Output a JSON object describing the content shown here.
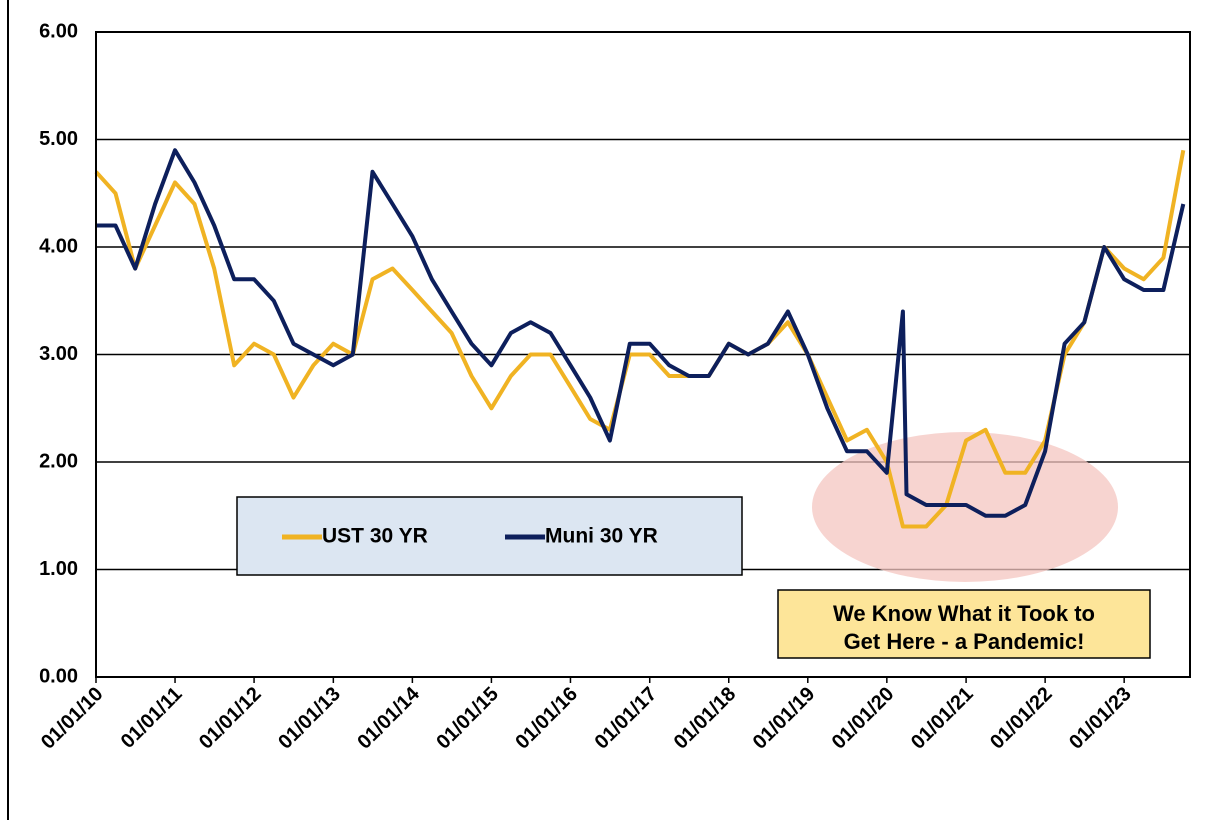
{
  "chart_data": {
    "type": "line",
    "x": [
      "01/01/10",
      "04/01/10",
      "07/01/10",
      "10/01/10",
      "01/01/11",
      "04/01/11",
      "07/01/11",
      "10/01/11",
      "01/01/12",
      "04/01/12",
      "07/01/12",
      "10/01/12",
      "01/01/13",
      "04/01/13",
      "07/01/13",
      "10/01/13",
      "01/01/14",
      "04/01/14",
      "07/01/14",
      "10/01/14",
      "01/01/15",
      "04/01/15",
      "07/01/15",
      "10/01/15",
      "01/01/16",
      "04/01/16",
      "07/01/16",
      "10/01/16",
      "01/01/17",
      "04/01/17",
      "07/01/17",
      "10/01/17",
      "01/01/18",
      "04/01/18",
      "07/01/18",
      "10/01/18",
      "01/01/19",
      "04/01/19",
      "07/01/19",
      "10/01/19",
      "01/01/20",
      "03/15/20",
      "04/01/20",
      "07/01/20",
      "10/01/20",
      "01/01/21",
      "04/01/21",
      "07/01/21",
      "10/01/21",
      "01/01/22",
      "04/01/22",
      "07/01/22",
      "10/01/22",
      "01/01/23",
      "04/01/23",
      "07/01/23",
      "10/01/23"
    ],
    "series": [
      {
        "name": "UST 30 YR",
        "color": "#f0b323",
        "values": [
          4.7,
          4.5,
          3.8,
          4.2,
          4.6,
          4.4,
          3.8,
          2.9,
          3.1,
          3.0,
          2.6,
          2.9,
          3.1,
          3.0,
          3.7,
          3.8,
          3.6,
          3.4,
          3.2,
          2.8,
          2.5,
          2.8,
          3.0,
          3.0,
          2.7,
          2.4,
          2.3,
          3.0,
          3.0,
          2.8,
          2.8,
          2.8,
          3.1,
          3.0,
          3.1,
          3.3,
          3.0,
          2.6,
          2.2,
          2.3,
          2.0,
          1.4,
          1.4,
          1.4,
          1.6,
          2.2,
          2.3,
          1.9,
          1.9,
          2.2,
          3.0,
          3.3,
          4.0,
          3.8,
          3.7,
          3.9,
          4.9
        ]
      },
      {
        "name": "Muni 30 YR",
        "color": "#0d1f5c",
        "values": [
          4.2,
          4.2,
          3.8,
          4.4,
          4.9,
          4.6,
          4.2,
          3.7,
          3.7,
          3.5,
          3.1,
          3.0,
          2.9,
          3.0,
          4.7,
          4.4,
          4.1,
          3.7,
          3.4,
          3.1,
          2.9,
          3.2,
          3.3,
          3.2,
          2.9,
          2.6,
          2.2,
          3.1,
          3.1,
          2.9,
          2.8,
          2.8,
          3.1,
          3.0,
          3.1,
          3.4,
          3.0,
          2.5,
          2.1,
          2.1,
          1.9,
          3.4,
          1.7,
          1.6,
          1.6,
          1.6,
          1.5,
          1.5,
          1.6,
          2.1,
          3.1,
          3.3,
          4.0,
          3.7,
          3.6,
          3.6,
          4.4
        ]
      }
    ],
    "xlim": [
      "01/01/10",
      "11/01/23"
    ],
    "xticks": [
      "01/01/10",
      "01/01/11",
      "01/01/12",
      "01/01/13",
      "01/01/14",
      "01/01/15",
      "01/01/16",
      "01/01/17",
      "01/01/18",
      "01/01/19",
      "01/01/20",
      "01/01/21",
      "01/01/22",
      "01/01/23"
    ],
    "ylim": [
      0,
      6
    ],
    "yticks": [
      {
        "value": 0,
        "label": "0.00"
      },
      {
        "value": 1,
        "label": "1.00"
      },
      {
        "value": 2,
        "label": "2.00"
      },
      {
        "value": 3,
        "label": "3.00"
      },
      {
        "value": 4,
        "label": "4.00"
      },
      {
        "value": 5,
        "label": "5.00"
      },
      {
        "value": 6,
        "label": "6.00"
      }
    ],
    "grid": true,
    "annotations": [
      "We Know What it Took to",
      "Get Here -  a Pandemic!"
    ]
  }
}
